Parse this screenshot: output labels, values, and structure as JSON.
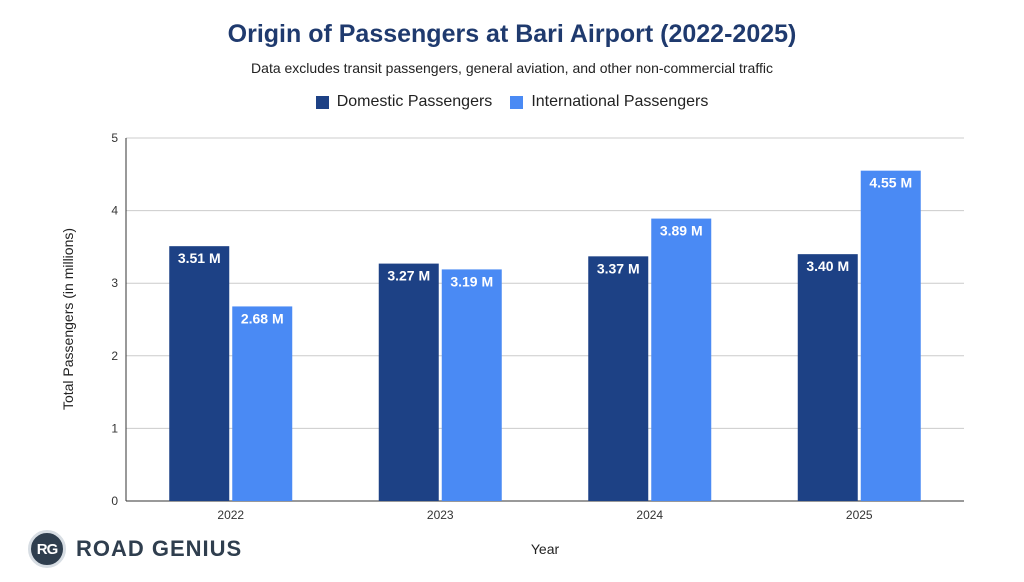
{
  "chart_data": {
    "type": "bar",
    "title": "Origin of Passengers at Bari Airport (2022-2025)",
    "subtitle": "Data excludes transit passengers, general aviation, and other non-commercial traffic",
    "categories": [
      "2022",
      "2023",
      "2024",
      "2025"
    ],
    "series": [
      {
        "name": "Domestic Passengers",
        "color": "#1d4185",
        "values": [
          3.51,
          3.27,
          3.37,
          3.4
        ],
        "labels": [
          "3.51 M",
          "3.27 M",
          "3.37 M",
          "3.40 M"
        ]
      },
      {
        "name": "International Passengers",
        "color": "#4a8af4",
        "values": [
          2.68,
          3.19,
          3.89,
          4.55
        ],
        "labels": [
          "2.68 M",
          "3.19 M",
          "3.89 M",
          "4.55 M"
        ]
      }
    ],
    "xlabel": "Year",
    "ylabel": "Total Passengers (in millions)",
    "ylim": [
      0,
      5
    ],
    "yticks": [
      "0",
      "1",
      "2",
      "3",
      "4",
      "5"
    ],
    "grid": true,
    "legend_position": "top-center"
  },
  "branding": {
    "logo_initials": "RG",
    "logo_text": "ROAD GENIUS"
  }
}
